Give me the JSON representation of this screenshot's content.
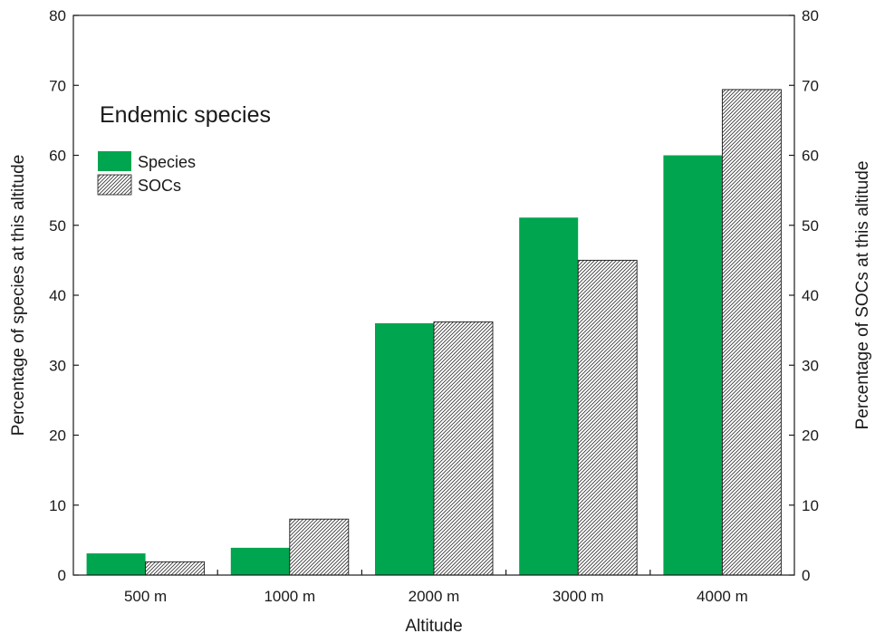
{
  "chart_data": {
    "type": "bar",
    "title": "Endemic species",
    "xlabel": "Altitude",
    "ylabel": "Percentage of species at this altitude",
    "ylabel_right": "Percentage of SOCs at this altitude",
    "categories": [
      "500 m",
      "1000 m",
      "2000 m",
      "3000 m",
      "4000 m"
    ],
    "series": [
      {
        "name": "Species",
        "values": [
          3.1,
          3.9,
          36.0,
          51.1,
          60.0
        ],
        "color": "#00a550",
        "pattern": "solid",
        "axis": "left"
      },
      {
        "name": "SOCs",
        "values": [
          1.9,
          8.0,
          36.2,
          45.0,
          69.4
        ],
        "color": "#ffffff",
        "pattern": "diagonal-hatch",
        "axis": "right"
      }
    ],
    "ylim": [
      0,
      80
    ],
    "ylim_right": [
      0,
      80
    ],
    "yticks": [
      0,
      10,
      20,
      30,
      40,
      50,
      60,
      70,
      80
    ],
    "grid": false,
    "legend_position": "top-left"
  }
}
